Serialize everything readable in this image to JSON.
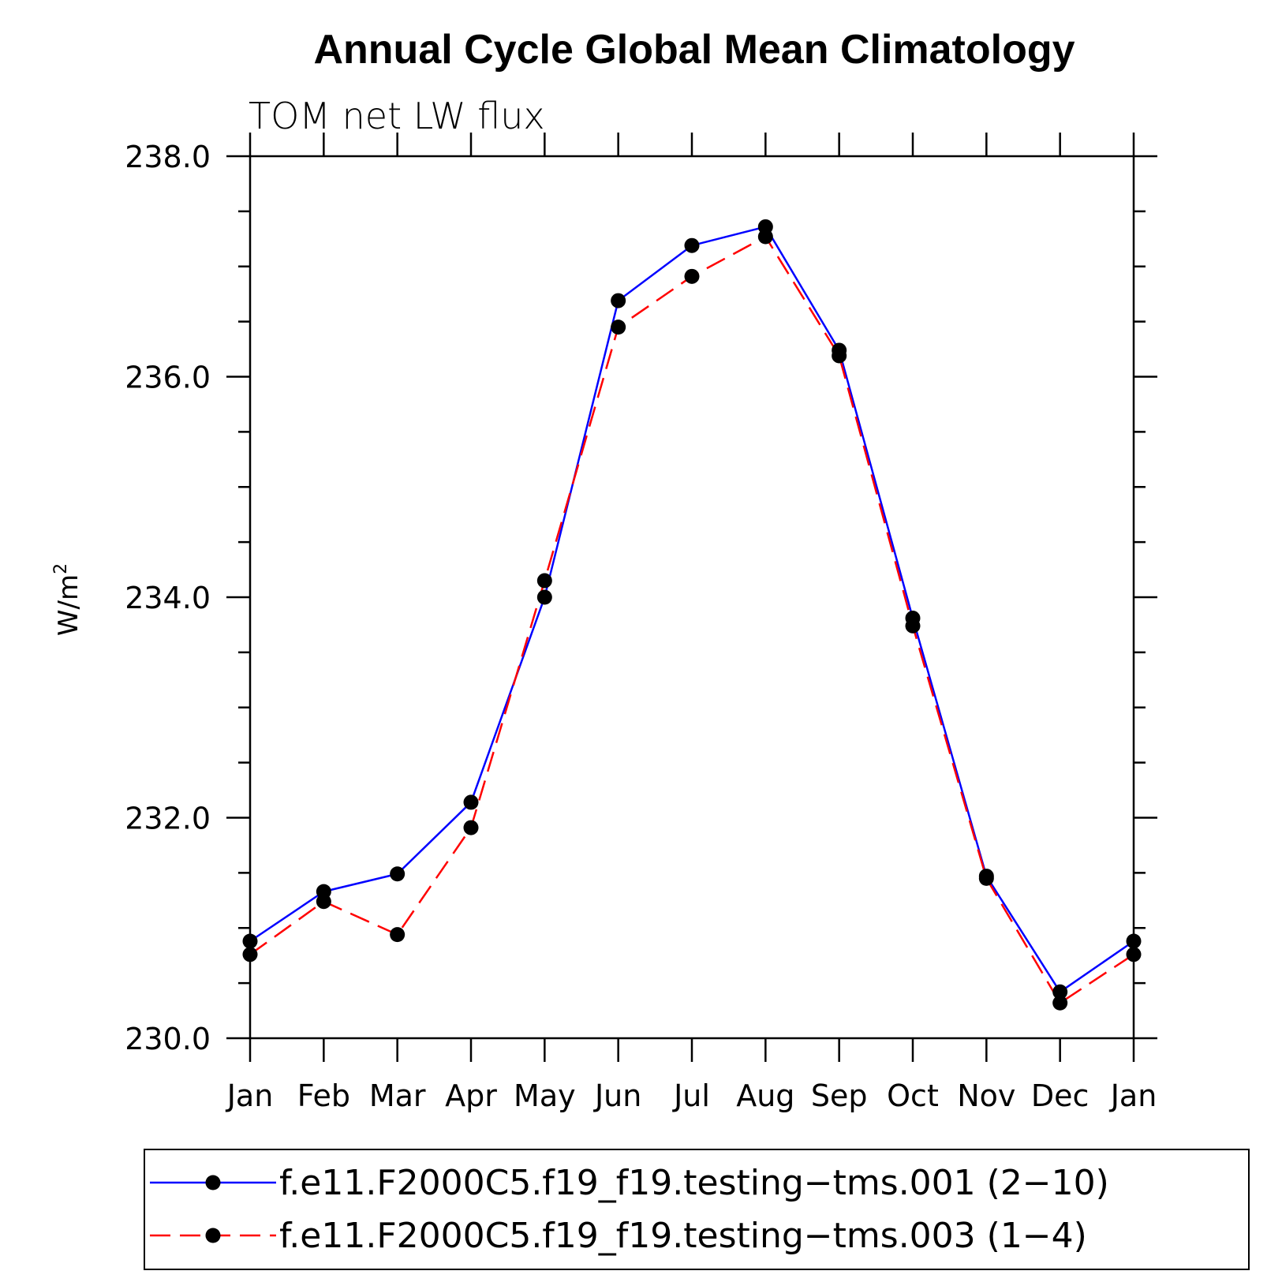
{
  "chart_data": {
    "type": "line",
    "title": "Annual Cycle Global Mean Climatology",
    "subtitle": "TOM net LW flux",
    "ylabel_base": "W/m",
    "ylabel_sup": "2",
    "xlabel": "",
    "categories": [
      "Jan",
      "Feb",
      "Mar",
      "Apr",
      "May",
      "Jun",
      "Jul",
      "Aug",
      "Sep",
      "Oct",
      "Nov",
      "Dec",
      "Jan"
    ],
    "ylim": [
      230.0,
      238.0
    ],
    "yticks": [
      "230.0",
      "232.0",
      "234.0",
      "236.0",
      "238.0"
    ],
    "grid": false,
    "legend_position": "bottom",
    "series": [
      {
        "name": "f.e11.F2000C5.f19_f19.testing−tms.001 (2−10)",
        "color": "#0000ff",
        "dash": "solid",
        "marker": "filled-circle",
        "values": [
          230.88,
          231.33,
          231.49,
          232.14,
          234.0,
          236.69,
          237.19,
          237.36,
          236.24,
          233.81,
          231.47,
          230.42,
          230.88
        ]
      },
      {
        "name": "f.e11.F2000C5.f19_f19.testing−tms.003 (1−4)",
        "color": "#ff0000",
        "dash": "dashed",
        "marker": "filled-circle",
        "values": [
          230.76,
          231.24,
          230.94,
          231.91,
          234.15,
          236.45,
          236.91,
          237.27,
          236.19,
          233.74,
          231.45,
          230.32,
          230.76
        ]
      }
    ]
  }
}
